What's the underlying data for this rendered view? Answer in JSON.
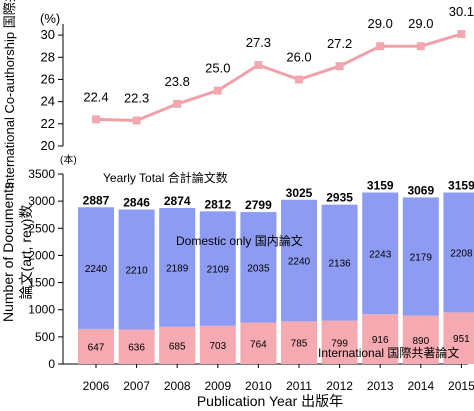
{
  "chart_data": [
    {
      "type": "line",
      "ylabel": "International Co-authorship 国際共著率",
      "unit": "(%)",
      "ylim": [
        20,
        31
      ],
      "yticks": [
        20,
        22,
        24,
        26,
        28,
        30
      ],
      "x": [
        "2006",
        "2007",
        "2008",
        "2009",
        "2010",
        "2011",
        "2012",
        "2013",
        "2014",
        "2015"
      ],
      "series": [
        {
          "values": [
            22.4,
            22.3,
            23.8,
            25.0,
            27.3,
            26.0,
            27.2,
            29.0,
            29.0,
            30.1
          ],
          "labels": [
            "22.4",
            "22.3",
            "23.8",
            "25.0",
            "27.3",
            "26.0",
            "27.2",
            "29.0",
            "29.0",
            "30.1"
          ]
        }
      ],
      "colors": {
        "line": "#f0a0a8",
        "marker": "#f2a8ae"
      }
    },
    {
      "type": "bar",
      "stacked": true,
      "ylabel_main": "Number of Documents",
      "ylabel_sub": "論文(art, rev)数",
      "unit": "(本)",
      "xlabel": "Publication Year 出版年",
      "ylim": [
        0,
        3500
      ],
      "yticks": [
        0,
        500,
        1000,
        1500,
        2000,
        2500,
        3000,
        3500
      ],
      "categories": [
        "2006",
        "2007",
        "2008",
        "2009",
        "2010",
        "2011",
        "2012",
        "2013",
        "2014",
        "2015"
      ],
      "series": [
        {
          "name": "International 国際共著論文",
          "values": [
            647,
            636,
            685,
            703,
            764,
            785,
            799,
            916,
            890,
            951
          ],
          "color": "#f5a9b0"
        },
        {
          "name": "Domestic only 国内論文",
          "values": [
            2240,
            2210,
            2189,
            2109,
            2035,
            2240,
            2136,
            2243,
            2179,
            2208
          ],
          "color": "#8d9cf2"
        }
      ],
      "totals": [
        2887,
        2846,
        2874,
        2812,
        2799,
        3025,
        2935,
        3159,
        3069,
        3159
      ],
      "total_label": "Yearly Total 合計論文数"
    }
  ]
}
